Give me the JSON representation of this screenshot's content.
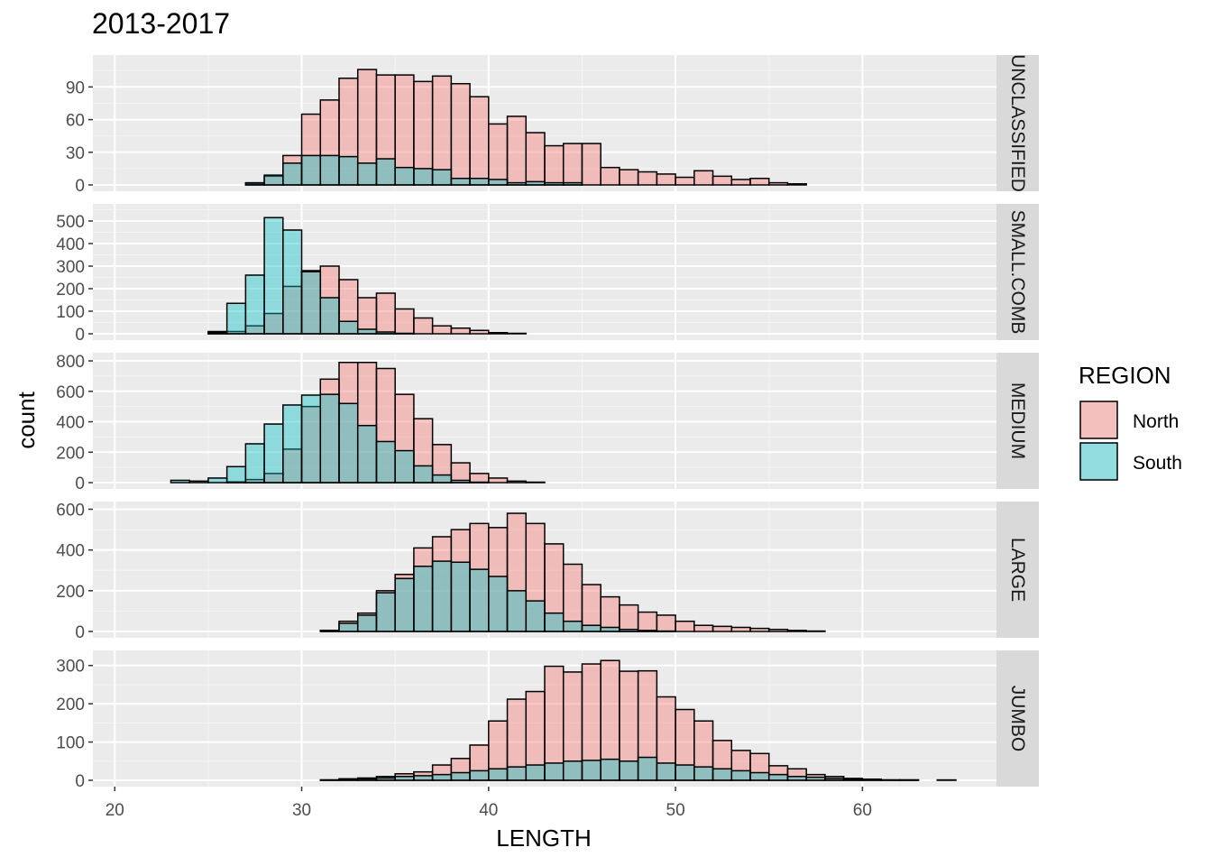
{
  "chart_data": {
    "type": "bar",
    "subtype": "faceted-overlapping-histogram",
    "title": "2013-2017",
    "xlabel": "LENGTH",
    "ylabel": "count",
    "xlim": [
      20,
      65
    ],
    "x_ticks": [
      20,
      30,
      40,
      50,
      60
    ],
    "bin_width": 1,
    "bin_starts": [
      21,
      22,
      23,
      24,
      25,
      26,
      27,
      28,
      29,
      30,
      31,
      32,
      33,
      34,
      35,
      36,
      37,
      38,
      39,
      40,
      41,
      42,
      43,
      44,
      45,
      46,
      47,
      48,
      49,
      50,
      51,
      52,
      53,
      54,
      55,
      56,
      57,
      58,
      59,
      60,
      61,
      62,
      63,
      64
    ],
    "grid": true,
    "legend": {
      "title": "REGION",
      "position": "right",
      "entries": [
        {
          "name": "North",
          "color": "#F8766D"
        },
        {
          "name": "South",
          "color": "#00BFC4"
        }
      ]
    },
    "bar_alpha": 0.4,
    "panels": [
      {
        "strip": "UNCLASSIFIED",
        "ylim": [
          0,
          116
        ],
        "y_ticks": [
          0,
          30,
          60,
          90
        ],
        "series": [
          {
            "name": "North",
            "values": [
              0,
              0,
              0,
              0,
              0,
              0,
              1,
              8,
              27,
              65,
              78,
              98,
              106,
              101,
              101,
              95,
              100,
              93,
              81,
              56,
              63,
              48,
              36,
              38,
              38,
              16,
              14,
              12,
              10,
              7,
              13,
              8,
              5,
              6,
              2,
              1,
              0,
              0,
              0,
              0,
              0,
              0,
              0,
              0
            ]
          },
          {
            "name": "South",
            "values": [
              0,
              0,
              0,
              0,
              0,
              0,
              2,
              9,
              20,
              27,
              27,
              26,
              20,
              24,
              16,
              15,
              14,
              6,
              6,
              5,
              2,
              3,
              2,
              2,
              0,
              0,
              0,
              0,
              0,
              0,
              0,
              0,
              0,
              0,
              0,
              0,
              0,
              0,
              0,
              0,
              0,
              0,
              0,
              0
            ]
          }
        ]
      },
      {
        "strip": "SMALL.COMB",
        "ylim": [
          0,
          560
        ],
        "y_ticks": [
          0,
          100,
          200,
          300,
          400,
          500
        ],
        "series": [
          {
            "name": "North",
            "values": [
              0,
              0,
              0,
              0,
              10,
              10,
              35,
              90,
              210,
              280,
              300,
              240,
              160,
              180,
              110,
              70,
              35,
              25,
              15,
              5,
              2,
              0,
              0,
              0,
              0,
              0,
              0,
              0,
              0,
              0,
              0,
              0,
              0,
              0,
              0,
              0,
              0,
              0,
              0,
              0,
              0,
              0,
              0,
              0
            ]
          },
          {
            "name": "South",
            "values": [
              0,
              0,
              0,
              0,
              5,
              135,
              260,
              515,
              460,
              275,
              160,
              55,
              20,
              8,
              2,
              0,
              0,
              0,
              0,
              0,
              0,
              0,
              0,
              0,
              0,
              0,
              0,
              0,
              0,
              0,
              0,
              0,
              0,
              0,
              0,
              0,
              0,
              0,
              0,
              0,
              0,
              0,
              0,
              0
            ]
          }
        ]
      },
      {
        "strip": "MEDIUM",
        "ylim": [
          0,
          830
        ],
        "y_ticks": [
          0,
          200,
          400,
          600,
          800
        ],
        "series": [
          {
            "name": "North",
            "values": [
              0,
              0,
              0,
              0,
              0,
              5,
              20,
              60,
              220,
              500,
              680,
              790,
              790,
              750,
              580,
              420,
              250,
              130,
              60,
              30,
              10,
              3,
              0,
              0,
              0,
              0,
              0,
              0,
              0,
              0,
              0,
              0,
              0,
              0,
              0,
              0,
              0,
              0,
              0,
              0,
              0,
              0,
              0,
              0
            ]
          },
          {
            "name": "South",
            "values": [
              0,
              0,
              15,
              10,
              30,
              105,
              255,
              385,
              510,
              575,
              580,
              520,
              375,
              270,
              210,
              110,
              50,
              15,
              3,
              0,
              0,
              0,
              0,
              0,
              0,
              0,
              0,
              0,
              0,
              0,
              0,
              0,
              0,
              0,
              0,
              0,
              0,
              0,
              0,
              0,
              0,
              0,
              0,
              0
            ]
          }
        ]
      },
      {
        "strip": "LARGE",
        "ylim": [
          0,
          620
        ],
        "y_ticks": [
          0,
          200,
          400,
          600
        ],
        "series": [
          {
            "name": "North",
            "values": [
              0,
              0,
              0,
              0,
              0,
              0,
              0,
              0,
              0,
              0,
              5,
              50,
              90,
              200,
              280,
              410,
              465,
              500,
              530,
              510,
              580,
              530,
              430,
              330,
              230,
              170,
              130,
              95,
              80,
              50,
              30,
              25,
              20,
              15,
              10,
              5,
              2,
              0,
              0,
              0,
              0,
              0,
              0,
              0
            ]
          },
          {
            "name": "South",
            "values": [
              0,
              0,
              0,
              0,
              0,
              0,
              0,
              0,
              0,
              0,
              5,
              40,
              80,
              190,
              260,
              320,
              345,
              340,
              305,
              270,
              200,
              150,
              90,
              50,
              30,
              20,
              10,
              5,
              2,
              0,
              0,
              0,
              0,
              0,
              0,
              0,
              0,
              0,
              0,
              0,
              0,
              0,
              0,
              0
            ]
          }
        ]
      },
      {
        "strip": "JUMBO",
        "ylim": [
          0,
          330
        ],
        "y_ticks": [
          0,
          100,
          200,
          300
        ],
        "series": [
          {
            "name": "North",
            "values": [
              0,
              0,
              0,
              0,
              0,
              0,
              0,
              0,
              0,
              0,
              1,
              4,
              6,
              10,
              17,
              22,
              40,
              57,
              92,
              155,
              212,
              232,
              298,
              283,
              304,
              313,
              285,
              286,
              218,
              185,
              155,
              104,
              78,
              70,
              38,
              30,
              15,
              10,
              5,
              3,
              1,
              1,
              0,
              0
            ]
          },
          {
            "name": "South",
            "values": [
              0,
              0,
              0,
              0,
              0,
              0,
              0,
              0,
              0,
              0,
              1,
              2,
              4,
              6,
              10,
              12,
              15,
              20,
              25,
              30,
              35,
              40,
              45,
              50,
              52,
              55,
              50,
              60,
              45,
              40,
              35,
              30,
              25,
              20,
              15,
              10,
              8,
              5,
              3,
              2,
              1,
              1,
              0,
              1
            ]
          }
        ]
      }
    ]
  }
}
